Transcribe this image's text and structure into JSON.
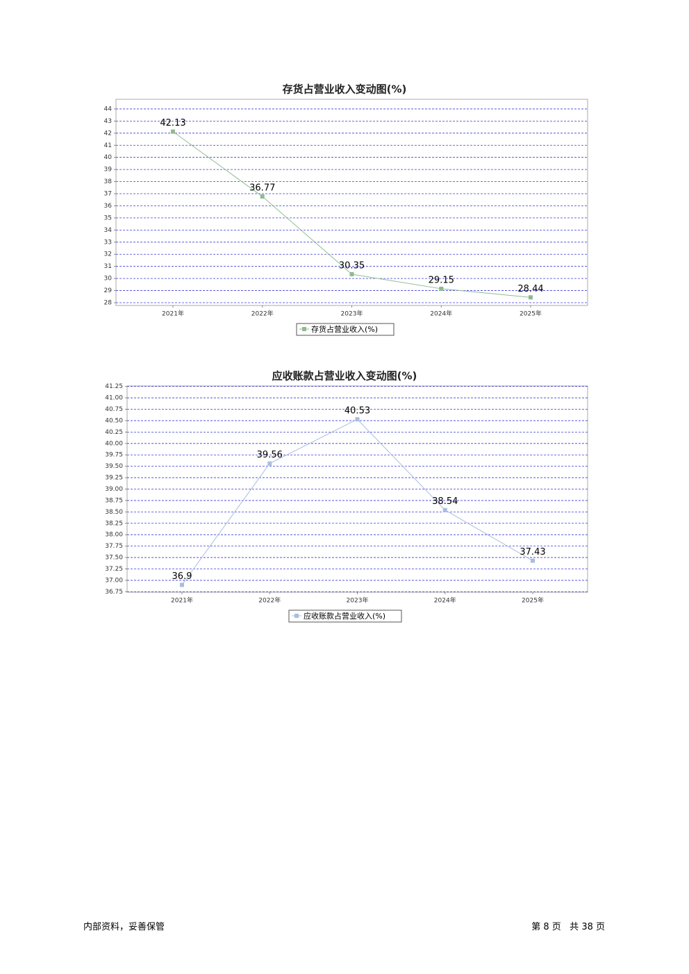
{
  "chart_data": [
    {
      "type": "line",
      "title": "存货占营业收入变动图(%)",
      "categories": [
        "2021年",
        "2022年",
        "2023年",
        "2024年",
        "2025年"
      ],
      "series": [
        {
          "name": "存货占营业收入(%)",
          "color": "#8fba8f",
          "values": [
            42.13,
            36.77,
            30.35,
            29.15,
            28.44
          ]
        }
      ],
      "ylim": [
        27.77,
        44.8
      ],
      "yticks": [
        28,
        29,
        30,
        31,
        32,
        33,
        34,
        35,
        36,
        37,
        38,
        39,
        40,
        41,
        42,
        43,
        44
      ],
      "grid": true
    },
    {
      "type": "line",
      "title": "应收账款占营业收入变动图(%)",
      "categories": [
        "2021年",
        "2022年",
        "2023年",
        "2024年",
        "2025年"
      ],
      "series": [
        {
          "name": "应收账款占营业收入(%)",
          "color": "#a9bde0",
          "values": [
            36.9,
            39.56,
            40.53,
            38.54,
            37.43
          ]
        }
      ],
      "ylim": [
        36.74,
        41.26
      ],
      "yticks": [
        36.75,
        {
          "value": 37,
          "label": "37.00"
        },
        37.25,
        {
          "value": 37.5,
          "label": "37.50"
        },
        37.75,
        {
          "value": 38,
          "label": "38.00"
        },
        38.25,
        {
          "value": 38.5,
          "label": "38.50"
        },
        38.75,
        {
          "value": 39,
          "label": "39.00"
        },
        39.25,
        {
          "value": 39.5,
          "label": "39.50"
        },
        39.75,
        {
          "value": 40,
          "label": "40.00"
        },
        40.25,
        {
          "value": 40.5,
          "label": "40.50"
        },
        40.75,
        {
          "value": 41,
          "label": "41.00"
        },
        41.25
      ],
      "grid": true
    }
  ],
  "footer": {
    "left": "内部资料，妥善保管",
    "right": "第 8 页   共 38 页"
  }
}
